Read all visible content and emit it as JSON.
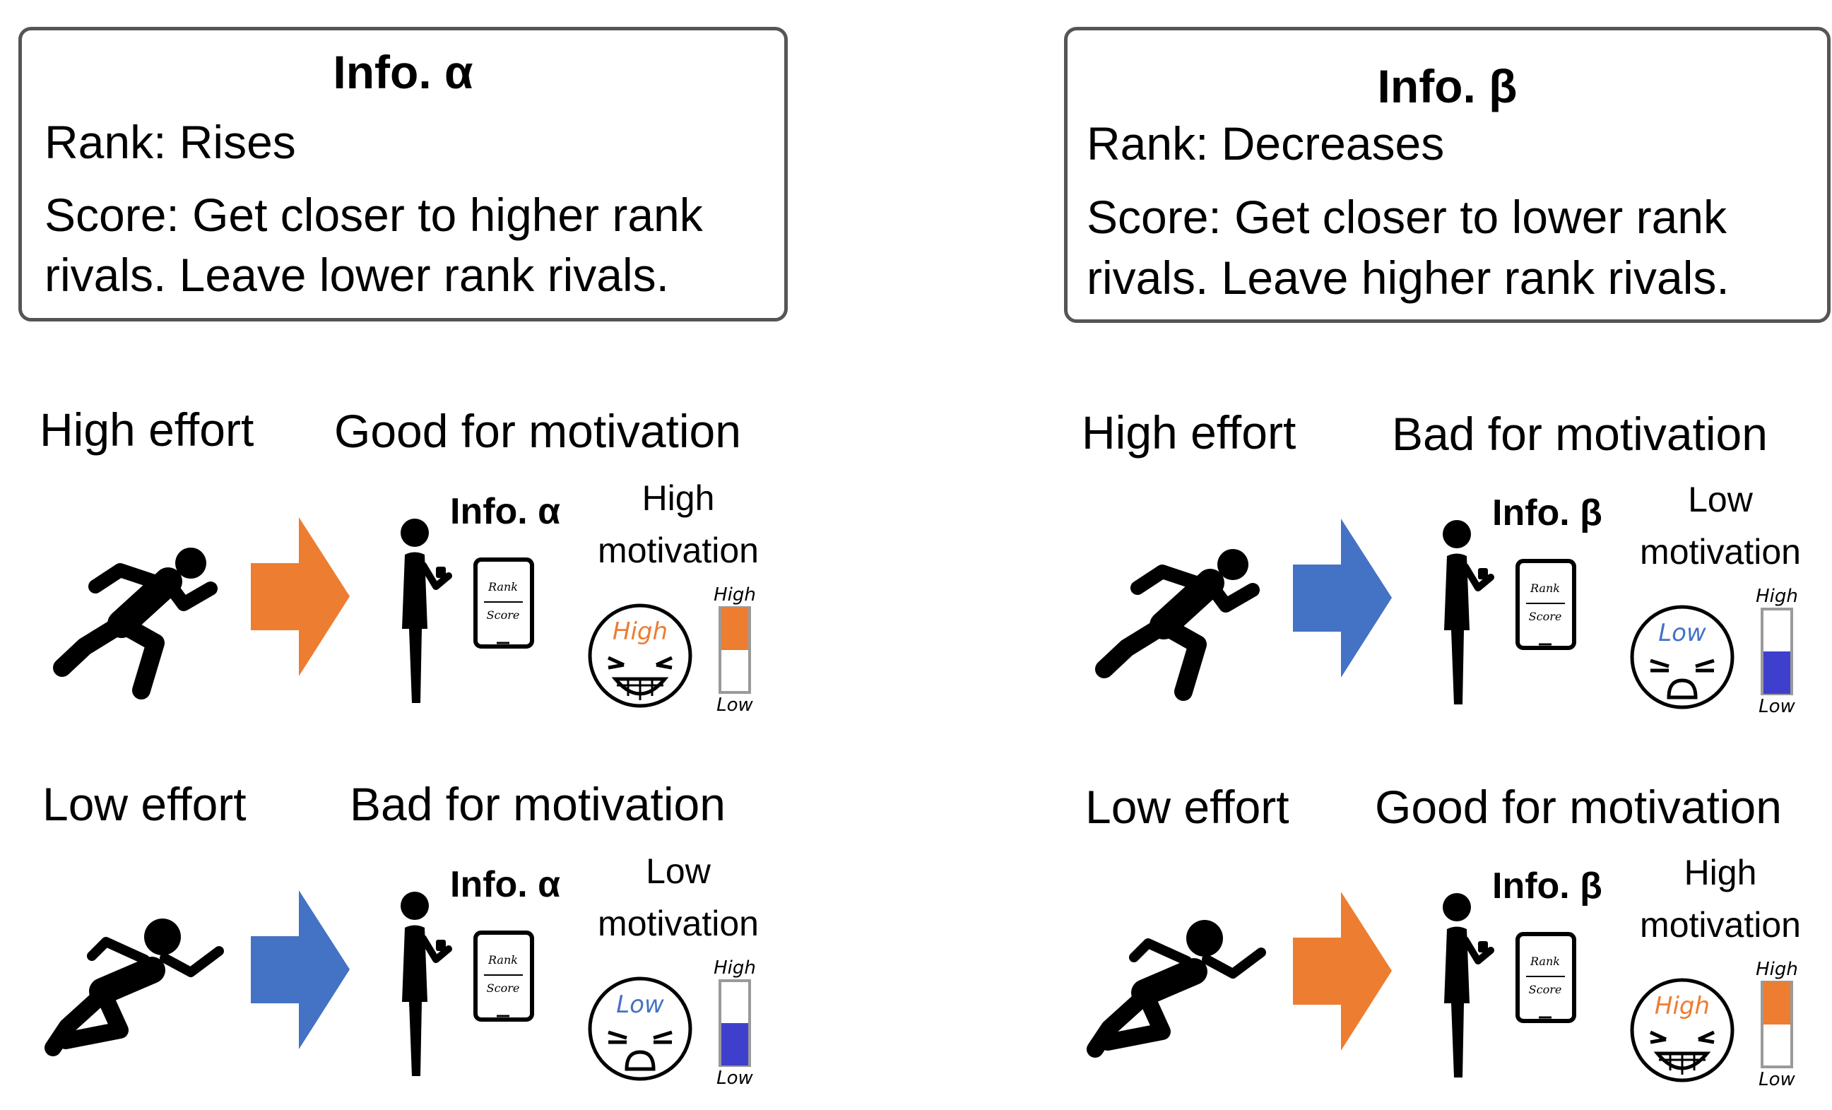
{
  "colors": {
    "orange": "#ED7D31",
    "blue": "#4472C4",
    "meter_blue": "#3F3FCE",
    "box_border": "#555555"
  },
  "info_alpha": {
    "title": "Info. α",
    "rank_line": "Rank: Rises",
    "score_line1": "Score: Get closer to higher rank",
    "score_line2": "rivals. Leave lower rank rivals."
  },
  "info_beta": {
    "title": "Info. β",
    "rank_line": "Rank: Decreases",
    "score_line1": "Score: Get closer to lower rank",
    "score_line2": "rivals. Leave higher rank rivals."
  },
  "phone": {
    "rank_label": "Rank",
    "score_label": "Score"
  },
  "meter": {
    "high_label": "High",
    "low_label": "Low"
  },
  "scenarios": {
    "alpha_high": {
      "effort": "High effort",
      "effect": "Good for motivation",
      "info_tag": "Info. α",
      "motivation_line1": "High",
      "motivation_line2": "motivation",
      "face_word": "High",
      "level": 0.5,
      "icons": [
        "running-person-icon",
        "orange-arrow-icon",
        "phone-user-icon",
        "grinning-face-icon"
      ]
    },
    "alpha_low": {
      "effort": "Low effort",
      "effect": "Bad for motivation",
      "info_tag": "Info. α",
      "motivation_line1": "Low",
      "motivation_line2": "motivation",
      "face_word": "Low",
      "level": 0.5,
      "icons": [
        "reclining-person-icon",
        "blue-arrow-icon",
        "phone-user-icon",
        "frowning-face-icon"
      ]
    },
    "beta_high": {
      "effort": "High effort",
      "effect": "Bad for motivation",
      "info_tag": "Info. β",
      "motivation_line1": "Low",
      "motivation_line2": "motivation",
      "face_word": "Low",
      "level": 0.5,
      "icons": [
        "running-person-icon",
        "blue-arrow-icon",
        "phone-user-icon",
        "frowning-face-icon"
      ]
    },
    "beta_low": {
      "effort": "Low effort",
      "effect": "Good for motivation",
      "info_tag": "Info. β",
      "motivation_line1": "High",
      "motivation_line2": "motivation",
      "face_word": "High",
      "level": 0.5,
      "icons": [
        "reclining-person-icon",
        "orange-arrow-icon",
        "phone-user-icon",
        "grinning-face-icon"
      ]
    }
  }
}
